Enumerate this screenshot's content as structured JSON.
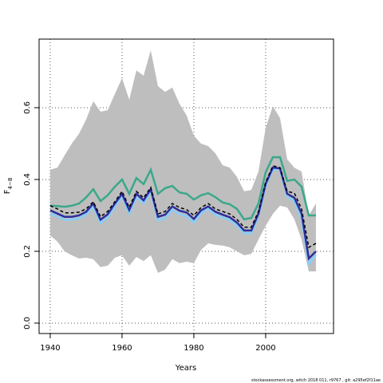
{
  "chart_data": {
    "type": "line",
    "xlabel": "Years",
    "ylabel": "F",
    "ylabel_subscript": "4−8",
    "footer": "stockassessment.org, witch 2018 011, r9767 , git: a295ef2f11ae",
    "x": [
      1940,
      1942,
      1944,
      1946,
      1948,
      1950,
      1952,
      1954,
      1956,
      1958,
      1960,
      1962,
      1964,
      1966,
      1968,
      1970,
      1972,
      1974,
      1976,
      1978,
      1980,
      1982,
      1984,
      1986,
      1988,
      1990,
      1992,
      1994,
      1996,
      1998,
      2000,
      2002,
      2004,
      2006,
      2008,
      2010,
      2012,
      2014
    ],
    "xlim": [
      1936.9,
      2018.9
    ],
    "xticks": [
      1940,
      1960,
      1980,
      2000
    ],
    "ylim": [
      -0.029,
      0.791
    ],
    "yticks": [
      {
        "value": 0,
        "label": "0.0"
      },
      0.2,
      0.4,
      0.6
    ],
    "grid": true,
    "band": {
      "color": "#bebebe",
      "upper": [
        0.427,
        0.433,
        0.467,
        0.5,
        0.527,
        0.567,
        0.618,
        0.589,
        0.593,
        0.638,
        0.682,
        0.622,
        0.704,
        0.689,
        0.76,
        0.66,
        0.644,
        0.656,
        0.611,
        0.578,
        0.522,
        0.5,
        0.493,
        0.473,
        0.44,
        0.433,
        0.407,
        0.367,
        0.371,
        0.422,
        0.544,
        0.604,
        0.571,
        0.456,
        0.433,
        0.422,
        0.3,
        0.333
      ],
      "lower": [
        0.244,
        0.227,
        0.2,
        0.189,
        0.18,
        0.182,
        0.178,
        0.156,
        0.16,
        0.182,
        0.189,
        0.16,
        0.184,
        0.173,
        0.189,
        0.14,
        0.149,
        0.178,
        0.167,
        0.171,
        0.167,
        0.204,
        0.222,
        0.218,
        0.216,
        0.211,
        0.2,
        0.189,
        0.193,
        0.233,
        0.271,
        0.304,
        0.327,
        0.322,
        0.289,
        0.233,
        0.144,
        0.144
      ]
    },
    "series": [
      {
        "color": "#3aa88a",
        "width": 2.5,
        "dashed": false,
        "values": [
          0.327,
          0.326,
          0.324,
          0.327,
          0.333,
          0.35,
          0.373,
          0.34,
          0.356,
          0.38,
          0.4,
          0.36,
          0.404,
          0.387,
          0.427,
          0.36,
          0.376,
          0.382,
          0.364,
          0.36,
          0.344,
          0.356,
          0.362,
          0.351,
          0.336,
          0.331,
          0.318,
          0.289,
          0.293,
          0.333,
          0.42,
          0.462,
          0.462,
          0.396,
          0.4,
          0.38,
          0.3,
          0.3
        ]
      },
      {
        "color": "#87cefa",
        "width": 2.5,
        "dashed": false,
        "values": [
          0.305,
          0.297,
          0.288,
          0.288,
          0.292,
          0.302,
          0.325,
          0.278,
          0.294,
          0.325,
          0.352,
          0.305,
          0.35,
          0.333,
          0.365,
          0.286,
          0.292,
          0.316,
          0.303,
          0.298,
          0.28,
          0.306,
          0.318,
          0.302,
          0.294,
          0.287,
          0.272,
          0.25,
          0.25,
          0.298,
          0.382,
          0.428,
          0.427,
          0.352,
          0.34,
          0.292,
          0.165,
          0.19
        ]
      },
      {
        "color": "#2e2e9a",
        "width": 2.5,
        "dashed": false,
        "values": [
          0.314,
          0.305,
          0.296,
          0.296,
          0.3,
          0.31,
          0.333,
          0.288,
          0.303,
          0.333,
          0.36,
          0.315,
          0.36,
          0.342,
          0.373,
          0.296,
          0.302,
          0.325,
          0.313,
          0.308,
          0.29,
          0.314,
          0.325,
          0.31,
          0.302,
          0.295,
          0.28,
          0.258,
          0.258,
          0.305,
          0.388,
          0.433,
          0.431,
          0.36,
          0.349,
          0.305,
          0.18,
          0.2
        ]
      },
      {
        "color": "#000000",
        "width": 1.5,
        "dashed": true,
        "values": [
          0.327,
          0.318,
          0.307,
          0.307,
          0.309,
          0.318,
          0.338,
          0.296,
          0.311,
          0.338,
          0.367,
          0.322,
          0.367,
          0.349,
          0.378,
          0.304,
          0.311,
          0.333,
          0.322,
          0.316,
          0.3,
          0.322,
          0.333,
          0.318,
          0.311,
          0.304,
          0.289,
          0.267,
          0.267,
          0.311,
          0.393,
          0.438,
          0.433,
          0.367,
          0.362,
          0.318,
          0.211,
          0.222
        ]
      }
    ]
  }
}
